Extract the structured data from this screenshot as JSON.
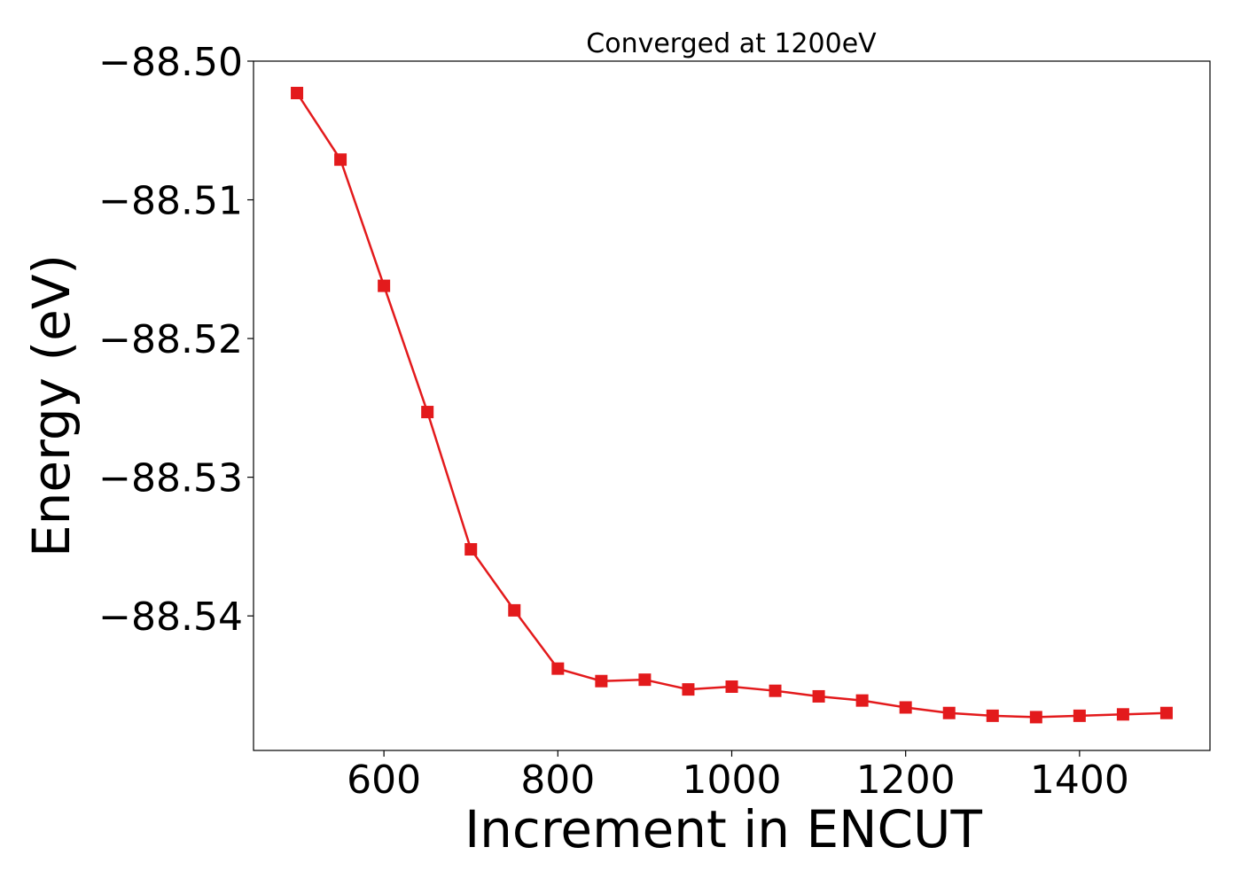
{
  "chart_data": {
    "type": "line",
    "title": "Converged at 1200eV",
    "xlabel": "Increment in ENCUT",
    "ylabel": "Energy (eV)",
    "xlim": [
      450,
      1550
    ],
    "ylim": [
      -88.5497,
      -88.5
    ],
    "xticks": [
      600,
      800,
      1000,
      1200,
      1400
    ],
    "xtick_labels": [
      "600",
      "800",
      "1000",
      "1200",
      "1400"
    ],
    "yticks": [
      -88.5,
      -88.51,
      -88.52,
      -88.53,
      -88.54
    ],
    "ytick_labels": [
      "−88.50",
      "−88.51",
      "−88.52",
      "−88.53",
      "−88.54"
    ],
    "grid": false,
    "marker": "square",
    "colors": {
      "line": "#e31a1c",
      "marker": "#e31a1c"
    },
    "series": [
      {
        "x": [
          500,
          550,
          600,
          650,
          700,
          750,
          800,
          850,
          900,
          950,
          1000,
          1050,
          1100,
          1150,
          1200,
          1250,
          1300,
          1350,
          1400,
          1450,
          1500
        ],
        "y": [
          -88.5023,
          -88.5071,
          -88.5162,
          -88.5253,
          -88.5352,
          -88.5396,
          -88.5438,
          -88.5447,
          -88.5446,
          -88.5453,
          -88.5451,
          -88.5454,
          -88.5458,
          -88.5461,
          -88.5466,
          -88.547,
          -88.5472,
          -88.5473,
          -88.5472,
          -88.5471,
          -88.547
        ]
      }
    ]
  }
}
